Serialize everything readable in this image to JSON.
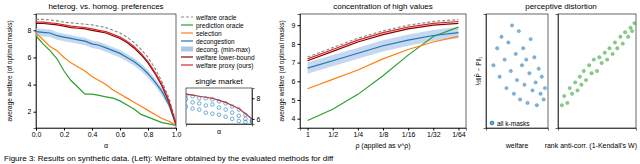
{
  "caption": "Figure 3: Results on synthetic data. (Left): Welfare obtained by the evaluated methods for diff",
  "chart_data": [
    {
      "type": "line",
      "title": "heterog. vs. homog. preferences",
      "xlabel": "α",
      "ylabel": "average welfare (of optimal masks)",
      "x": [
        0,
        0.05,
        0.1,
        0.15,
        0.2,
        0.25,
        0.3,
        0.35,
        0.4,
        0.45,
        0.5,
        0.55,
        0.6,
        0.65,
        0.7,
        0.75,
        0.8,
        0.85,
        0.9,
        0.95,
        1
      ],
      "xlim": [
        0,
        1
      ],
      "xticks": [
        {
          "value": 0,
          "label": "0.0"
        },
        0.2,
        0.4,
        0.6,
        0.8,
        {
          "value": 1,
          "label": "1.0"
        }
      ],
      "ylim": [
        0.8,
        9.2
      ],
      "yticks": [
        2,
        4,
        6,
        8
      ],
      "legend": "right",
      "series": [
        {
          "name": "welfare oracle",
          "color": "#8c8c8c",
          "line_style": "dashed",
          "values": [
            8.8,
            8.8,
            8.75,
            8.7,
            8.6,
            8.55,
            8.5,
            8.45,
            8.4,
            8.3,
            8.2,
            8.0,
            7.8,
            7.5,
            7.1,
            6.6,
            6.0,
            5.2,
            4.2,
            3.0,
            1.2
          ]
        },
        {
          "name": "prediction oracle",
          "color": "#2ca02c",
          "values": [
            7.6,
            7.0,
            6.5,
            5.9,
            5.0,
            4.3,
            3.8,
            3.3,
            3.3,
            3.2,
            3.1,
            3.0,
            2.8,
            2.5,
            2.2,
            1.8,
            1.6,
            1.4,
            1.2,
            1.1,
            1.0
          ]
        },
        {
          "name": "selection",
          "color": "#ff7f0e",
          "values": [
            7.8,
            7.3,
            6.8,
            6.5,
            6.0,
            5.6,
            5.3,
            5.0,
            4.6,
            4.3,
            4.0,
            3.6,
            3.3,
            3.0,
            2.7,
            2.4,
            2.1,
            1.8,
            1.5,
            1.3,
            1.0
          ]
        },
        {
          "name": "decongestion",
          "color": "#1f77b4",
          "values": [
            7.9,
            7.85,
            7.8,
            7.6,
            7.5,
            7.4,
            7.3,
            7.2,
            7.0,
            6.9,
            6.7,
            6.5,
            6.3,
            6.0,
            5.7,
            5.3,
            4.8,
            4.2,
            3.5,
            2.5,
            1.0
          ]
        },
        {
          "name": "decong. (min-max)",
          "type": "band",
          "color": "#aec7e8",
          "low": [
            7.6,
            7.55,
            7.5,
            7.3,
            7.2,
            7.1,
            7.0,
            6.9,
            6.7,
            6.6,
            6.4,
            6.2,
            6.0,
            5.7,
            5.4,
            5.0,
            4.5,
            3.9,
            3.2,
            2.3,
            0.95
          ],
          "high": [
            8.15,
            8.1,
            8.05,
            7.85,
            7.75,
            7.65,
            7.55,
            7.45,
            7.25,
            7.15,
            6.95,
            6.75,
            6.55,
            6.25,
            5.95,
            5.55,
            5.05,
            4.45,
            3.75,
            2.7,
            1.05
          ]
        },
        {
          "name": "welfare lower-bound",
          "color": "#8b0000",
          "values": [
            8.5,
            8.5,
            8.45,
            8.4,
            8.3,
            8.2,
            8.15,
            8.1,
            8.0,
            7.9,
            7.8,
            7.6,
            7.4,
            7.1,
            6.7,
            6.2,
            5.6,
            4.8,
            3.9,
            2.7,
            1.05
          ]
        },
        {
          "name": "welfare proxy (ours)",
          "color": "#d62728",
          "values": [
            8.6,
            8.6,
            8.55,
            8.5,
            8.4,
            8.3,
            8.25,
            8.2,
            8.1,
            8.0,
            7.9,
            7.7,
            7.5,
            7.2,
            6.8,
            6.3,
            5.7,
            4.9,
            4.0,
            2.8,
            1.1
          ]
        }
      ]
    },
    {
      "type": "line",
      "title": "single market",
      "xlabel": "α",
      "x": [
        0,
        0.1,
        0.2,
        0.3,
        0.4,
        0.5,
        0.6,
        0.7,
        0.8,
        0.9,
        1
      ],
      "xlim": [
        0,
        1
      ],
      "ylim": [
        5.5,
        9
      ],
      "yticks": [
        6,
        8
      ],
      "tick_labels": "y",
      "series": [
        {
          "color": "#d62728",
          "values": [
            8.4,
            8.3,
            8.2,
            8.1,
            8.0,
            7.8,
            7.6,
            7.3,
            7.0,
            6.5,
            6.0
          ]
        },
        {
          "type": "scatter",
          "marker": "open-circle",
          "color": "#1f77b4",
          "x": [
            0,
            0,
            0,
            0.1,
            0.1,
            0.1,
            0.2,
            0.2,
            0.2,
            0.3,
            0.3,
            0.3,
            0.4,
            0.4,
            0.4,
            0.5,
            0.5,
            0.5,
            0.6,
            0.6,
            0.6,
            0.7,
            0.7,
            0.7,
            0.8,
            0.8,
            0.8,
            0.9,
            0.9,
            0.9,
            1,
            1,
            1
          ],
          "values": [
            8.3,
            7.9,
            7.2,
            8.2,
            7.6,
            7.0,
            8.0,
            7.5,
            6.9,
            8.0,
            7.3,
            6.6,
            7.9,
            7.4,
            6.5,
            7.7,
            7.1,
            6.4,
            7.5,
            6.9,
            6.2,
            7.2,
            6.6,
            6.0,
            6.9,
            6.3,
            5.8,
            6.4,
            6.0,
            5.7,
            5.9,
            5.8,
            5.7
          ]
        }
      ]
    },
    {
      "type": "line",
      "title": "concentration of high values",
      "xlabel": "ρ (applied as v^ρ)",
      "ylabel": "average welfare (of optimal masks)",
      "categories": [
        "1",
        "1/2",
        "1/4",
        "1/8",
        "1/16",
        "1/32",
        "1/64"
      ],
      "ylim": [
        3.5,
        9.6
      ],
      "yticks": [
        4,
        5,
        6,
        7,
        8,
        9
      ],
      "series": [
        {
          "color": "#8c8c8c",
          "line_style": "dashed",
          "values": [
            7.3,
            7.8,
            8.3,
            8.7,
            9.0,
            9.2,
            9.3
          ]
        },
        {
          "color": "#2ca02c",
          "values": [
            3.9,
            4.5,
            5.3,
            6.3,
            7.4,
            8.4,
            8.9
          ]
        },
        {
          "color": "#ff7f0e",
          "values": [
            5.6,
            6.1,
            6.6,
            7.2,
            7.7,
            8.1,
            8.4
          ]
        },
        {
          "color": "#1f77b4",
          "values": [
            6.7,
            7.1,
            7.5,
            7.9,
            8.2,
            8.45,
            8.6
          ]
        },
        {
          "type": "band",
          "color": "#aec7e8",
          "low": [
            6.4,
            6.8,
            7.2,
            7.6,
            7.9,
            8.15,
            8.3
          ],
          "high": [
            7.0,
            7.4,
            7.8,
            8.2,
            8.5,
            8.75,
            8.9
          ]
        },
        {
          "color": "#8b0000",
          "values": [
            7.1,
            7.6,
            8.1,
            8.5,
            8.8,
            9.0,
            9.1
          ]
        },
        {
          "color": "#d62728",
          "values": [
            7.2,
            7.7,
            8.2,
            8.6,
            8.9,
            9.1,
            9.2
          ]
        }
      ]
    },
    {
      "type": "scatter",
      "title": "perceptive distortion",
      "xlabel": "welfare",
      "ylabel": "½‖P̂ − P‖₁",
      "xlim": [
        0,
        1
      ],
      "ylim": [
        0,
        1
      ],
      "tick_labels": false,
      "legend": "lower left",
      "series": [
        {
          "name": "all k-masks",
          "color": "#1f77b4",
          "marker": "circle",
          "x": [
            0.12,
            0.18,
            0.22,
            0.25,
            0.3,
            0.33,
            0.36,
            0.4,
            0.42,
            0.45,
            0.48,
            0.5,
            0.53,
            0.55,
            0.58,
            0.6,
            0.62,
            0.65,
            0.67,
            0.7,
            0.72,
            0.75,
            0.78,
            0.8,
            0.82,
            0.85,
            0.88,
            0.9,
            0.93,
            0.95
          ],
          "values": [
            0.55,
            0.7,
            0.45,
            0.8,
            0.6,
            0.35,
            0.75,
            0.5,
            0.9,
            0.3,
            0.65,
            0.42,
            0.85,
            0.25,
            0.55,
            0.7,
            0.38,
            0.6,
            0.22,
            0.48,
            0.78,
            0.33,
            0.62,
            0.4,
            0.2,
            0.52,
            0.3,
            0.45,
            0.25,
            0.35
          ]
        }
      ]
    },
    {
      "type": "scatter",
      "xlabel": "rank anti-corr. (1-Kendall's W)",
      "xlim": [
        0,
        1
      ],
      "ylim": [
        0,
        1
      ],
      "tick_labels": false,
      "series": [
        {
          "color": "#2ca02c",
          "marker": "circle",
          "x": [
            0.05,
            0.08,
            0.12,
            0.15,
            0.18,
            0.22,
            0.25,
            0.28,
            0.3,
            0.33,
            0.36,
            0.4,
            0.43,
            0.46,
            0.5,
            0.53,
            0.56,
            0.6,
            0.63,
            0.66,
            0.7,
            0.73,
            0.76,
            0.8,
            0.83,
            0.86,
            0.9,
            0.93,
            0.95,
            0.98
          ],
          "values": [
            0.2,
            0.28,
            0.22,
            0.35,
            0.3,
            0.4,
            0.33,
            0.45,
            0.38,
            0.5,
            0.42,
            0.55,
            0.48,
            0.6,
            0.5,
            0.62,
            0.57,
            0.66,
            0.6,
            0.7,
            0.65,
            0.75,
            0.7,
            0.8,
            0.74,
            0.84,
            0.8,
            0.88,
            0.85,
            0.92
          ]
        }
      ]
    }
  ]
}
